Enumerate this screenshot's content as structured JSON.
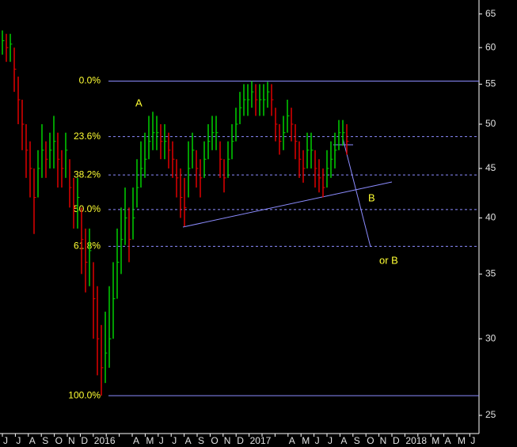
{
  "chart_data": {
    "type": "ohlc",
    "log_scale": true,
    "ylim": [
      23.94,
      67.2
    ],
    "yticks": [
      25,
      30,
      35,
      40,
      45,
      50,
      55,
      60,
      65
    ],
    "categories": [
      "J",
      "J",
      "A",
      "S",
      "O",
      "N",
      "D",
      "2016",
      null,
      null,
      "A",
      "M",
      "J",
      "J",
      "A",
      "S",
      "O",
      "N",
      "D",
      "2017",
      null,
      null,
      "A",
      "M",
      "J",
      "J",
      "A",
      "S",
      "O",
      "N",
      "D",
      "2018",
      null,
      "M",
      "A",
      "M",
      "J"
    ],
    "up_color": "#00d000",
    "down_color": "#e00000",
    "high": [
      62.5,
      62,
      62,
      60,
      56,
      53,
      50,
      48,
      45,
      47,
      50,
      48,
      49,
      51,
      49,
      47,
      49,
      46,
      44,
      44,
      41,
      39,
      39,
      36,
      34,
      31,
      32,
      34,
      36,
      39,
      41,
      43,
      41,
      43,
      46,
      48,
      49,
      51,
      51.5,
      51,
      50,
      50,
      49,
      48,
      46,
      45,
      44,
      48,
      49,
      47,
      46,
      48,
      50,
      51,
      51,
      48,
      46,
      48,
      50,
      52,
      54,
      55,
      55,
      55.4,
      55,
      55,
      55,
      55.3,
      55,
      52,
      50,
      51,
      53,
      52,
      50,
      48,
      47,
      49,
      49,
      47,
      46,
      45,
      47,
      48,
      49,
      50.5,
      50.5,
      50
    ],
    "low": [
      59,
      58,
      58,
      54,
      50,
      47,
      44,
      42,
      38.5,
      42,
      44,
      44,
      45,
      45,
      43,
      43,
      44,
      41,
      39,
      39,
      35,
      33.5,
      34,
      30,
      27.5,
      26.2,
      27,
      28,
      30,
      33,
      35,
      37.5,
      36,
      38,
      41,
      43,
      44,
      46,
      47,
      47,
      46,
      46,
      45,
      44,
      42,
      40,
      39.2,
      42,
      45,
      43,
      42,
      44,
      46,
      47,
      47,
      44,
      42.5,
      44,
      46,
      48,
      50,
      51,
      51,
      52,
      51,
      51,
      51,
      52,
      51,
      48,
      46.5,
      47,
      49,
      48,
      46,
      44,
      43.5,
      45,
      45,
      43,
      42.5,
      42,
      43,
      44,
      45,
      47,
      47.5,
      46.5
    ],
    "close": [
      61,
      60,
      60.5,
      57,
      53,
      50,
      47,
      45,
      42,
      45,
      47,
      46,
      47,
      48,
      46,
      45,
      47,
      43,
      41,
      42,
      38,
      36,
      37,
      33,
      30,
      28,
      29,
      30,
      33,
      36,
      38,
      40,
      38,
      40,
      43,
      45,
      46,
      48,
      49,
      49,
      48,
      48,
      47,
      46,
      44,
      42,
      41,
      45,
      47,
      45,
      44,
      46,
      48,
      49,
      49,
      46,
      44,
      46,
      48,
      50,
      52,
      53,
      53,
      54,
      53,
      53,
      53,
      54,
      53,
      50,
      48,
      49,
      51,
      50,
      48,
      46,
      45,
      47,
      47,
      45,
      44,
      43,
      45,
      46,
      47,
      49,
      49,
      48
    ],
    "levels": [
      {
        "label": "0.0%",
        "value": 55.4,
        "style": "solid"
      },
      {
        "label": "23.6%",
        "value": 48.55,
        "style": "dashed"
      },
      {
        "label": "38.2%",
        "value": 44.31,
        "style": "dashed"
      },
      {
        "label": "50.0%",
        "value": 40.8,
        "style": "dashed"
      },
      {
        "label": "61.8%",
        "value": 37.38,
        "style": "dashed"
      },
      {
        "label": "100.0%",
        "value": 26.2,
        "style": "solid"
      }
    ],
    "level_color": "#8c8cff",
    "annotations": [
      "A",
      "B",
      "or B"
    ]
  }
}
